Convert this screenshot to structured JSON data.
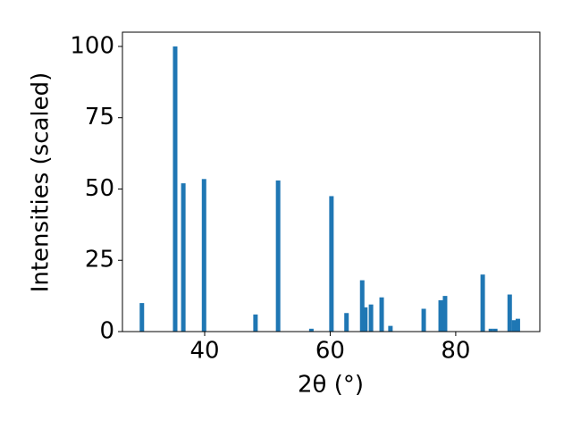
{
  "chart_data": {
    "type": "bar",
    "xlabel": "2θ (°)",
    "ylabel": "Intensities (scaled)",
    "x": [
      30.0,
      35.3,
      36.6,
      39.9,
      48.1,
      51.7,
      57.0,
      60.2,
      62.6,
      65.1,
      65.6,
      66.5,
      68.2,
      69.6,
      74.9,
      77.6,
      78.3,
      84.3,
      85.6,
      86.3,
      88.6,
      89.3,
      89.9
    ],
    "values": [
      10,
      100,
      52,
      53.5,
      6,
      53,
      1,
      47.5,
      6.5,
      18,
      8.5,
      9.5,
      12,
      2,
      8,
      11,
      12.5,
      20,
      1,
      1,
      13,
      4,
      4.5
    ],
    "color": "#1f77b4",
    "xlim": [
      26.9,
      93.4
    ],
    "xticks": [
      40,
      60,
      80
    ],
    "ylim": [
      0,
      105
    ],
    "yticks": [
      0,
      25,
      50,
      75,
      100
    ],
    "grid": false
  }
}
